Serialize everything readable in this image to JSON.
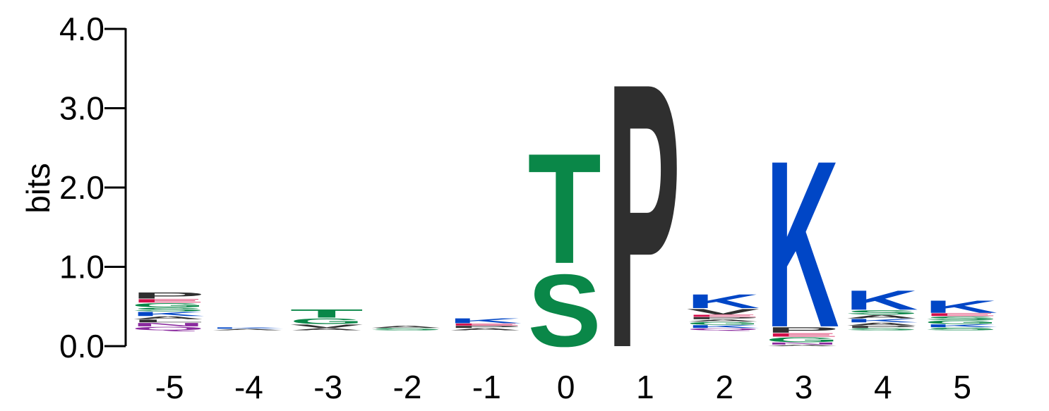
{
  "chart_data": {
    "type": "sequence-logo",
    "title": "",
    "xlabel": "",
    "ylabel": "bits",
    "ylim": [
      0,
      4
    ],
    "y_ticks": [
      "0.0",
      "1.0",
      "2.0",
      "3.0",
      "4.0"
    ],
    "x_ticks": [
      "-5",
      "-4",
      "-3",
      "-2",
      "-1",
      "0",
      "1",
      "2",
      "3",
      "4",
      "5"
    ],
    "colors": {
      "S": "#0a8748",
      "T": "#0a8748",
      "G": "#0a8748",
      "P": "#2f2f2f",
      "V": "#2f2f2f",
      "A": "#2f2f2f",
      "L": "#2f2f2f",
      "K": "#0046c6",
      "R": "#0046c6",
      "H": "#0046c6",
      "E": "#d30f4b",
      "D": "#d30f4b",
      "Q": "#8a2a9e",
      "N": "#8a2a9e"
    },
    "positions": [
      {
        "label": "-5",
        "stack": [
          {
            "letter": "Q",
            "height": 0.05,
            "color": "#8a2a9e"
          },
          {
            "letter": "N",
            "height": 0.05,
            "color": "#8a2a9e"
          },
          {
            "letter": "L",
            "height": 0.04,
            "color": "#2f2f2f"
          },
          {
            "letter": "A",
            "height": 0.04,
            "color": "#2f2f2f"
          },
          {
            "letter": "K",
            "height": 0.06,
            "color": "#0046c6"
          },
          {
            "letter": "S",
            "height": 0.05,
            "color": "#0a8748"
          },
          {
            "letter": "G",
            "height": 0.06,
            "color": "#0a8748"
          },
          {
            "letter": "E",
            "height": 0.05,
            "color": "#d30f4b"
          },
          {
            "letter": "P",
            "height": 0.09,
            "color": "#2f2f2f"
          }
        ]
      },
      {
        "label": "-4",
        "stack": [
          {
            "letter": "A",
            "height": 0.02,
            "color": "#2f2f2f"
          },
          {
            "letter": "K",
            "height": 0.02,
            "color": "#0046c6"
          }
        ]
      },
      {
        "label": "-3",
        "stack": [
          {
            "letter": "A",
            "height": 0.03,
            "color": "#2f2f2f"
          },
          {
            "letter": "V",
            "height": 0.05,
            "color": "#2f2f2f"
          },
          {
            "letter": "G",
            "height": 0.08,
            "color": "#0a8748"
          },
          {
            "letter": "T",
            "height": 0.12,
            "color": "#0a8748"
          }
        ]
      },
      {
        "label": "-2",
        "stack": [
          {
            "letter": "S",
            "height": 0.03,
            "color": "#0a8748"
          },
          {
            "letter": "A",
            "height": 0.03,
            "color": "#2f2f2f"
          }
        ]
      },
      {
        "label": "-1",
        "stack": [
          {
            "letter": "A",
            "height": 0.03,
            "color": "#2f2f2f"
          },
          {
            "letter": "P",
            "height": 0.03,
            "color": "#2f2f2f"
          },
          {
            "letter": "E",
            "height": 0.03,
            "color": "#d30f4b"
          },
          {
            "letter": "K",
            "height": 0.07,
            "color": "#0046c6"
          }
        ]
      },
      {
        "label": "0",
        "stack": [
          {
            "letter": "S",
            "height": 1.05,
            "color": "#0a8748"
          },
          {
            "letter": "T",
            "height": 1.6,
            "color": "#0a8748"
          }
        ]
      },
      {
        "label": "1",
        "stack": [
          {
            "letter": "P",
            "height": 3.84,
            "color": "#2f2f2f"
          }
        ]
      },
      {
        "label": "2",
        "stack": [
          {
            "letter": "Q",
            "height": 0.03,
            "color": "#8a2a9e"
          },
          {
            "letter": "K",
            "height": 0.04,
            "color": "#0046c6"
          },
          {
            "letter": "G",
            "height": 0.04,
            "color": "#0a8748"
          },
          {
            "letter": "A",
            "height": 0.03,
            "color": "#2f2f2f"
          },
          {
            "letter": "P",
            "height": 0.03,
            "color": "#2f2f2f"
          },
          {
            "letter": "E",
            "height": 0.03,
            "color": "#d30f4b"
          },
          {
            "letter": "V",
            "height": 0.08,
            "color": "#2f2f2f"
          },
          {
            "letter": "K",
            "height": 0.2,
            "color": "#0046c6"
          }
        ]
      },
      {
        "label": "3",
        "stack": [
          {
            "letter": "A",
            "height": 0.02,
            "color": "#2f2f2f"
          },
          {
            "letter": "N",
            "height": 0.03,
            "color": "#8a2a9e"
          },
          {
            "letter": "G",
            "height": 0.07,
            "color": "#0a8748"
          },
          {
            "letter": "E",
            "height": 0.05,
            "color": "#d30f4b"
          },
          {
            "letter": "P",
            "height": 0.08,
            "color": "#2f2f2f"
          },
          {
            "letter": "K",
            "height": 2.42,
            "color": "#0046c6"
          }
        ]
      },
      {
        "label": "4",
        "stack": [
          {
            "letter": "S",
            "height": 0.03,
            "color": "#0a8748"
          },
          {
            "letter": "P",
            "height": 0.03,
            "color": "#2f2f2f"
          },
          {
            "letter": "A",
            "height": 0.04,
            "color": "#2f2f2f"
          },
          {
            "letter": "K",
            "height": 0.05,
            "color": "#0046c6"
          },
          {
            "letter": "A",
            "height": 0.05,
            "color": "#2f2f2f"
          },
          {
            "letter": "S",
            "height": 0.06,
            "color": "#0a8748"
          },
          {
            "letter": "K",
            "height": 0.28,
            "color": "#0046c6"
          }
        ]
      },
      {
        "label": "5",
        "stack": [
          {
            "letter": "S",
            "height": 0.04,
            "color": "#0a8748"
          },
          {
            "letter": "K",
            "height": 0.04,
            "color": "#0046c6"
          },
          {
            "letter": "G",
            "height": 0.05,
            "color": "#0a8748"
          },
          {
            "letter": "S",
            "height": 0.05,
            "color": "#0a8748"
          },
          {
            "letter": "E",
            "height": 0.04,
            "color": "#d30f4b"
          },
          {
            "letter": "K",
            "height": 0.18,
            "color": "#0046c6"
          }
        ]
      }
    ]
  }
}
